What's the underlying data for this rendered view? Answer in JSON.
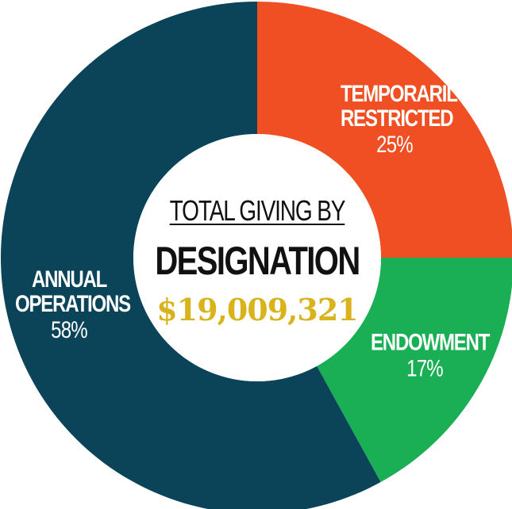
{
  "chart_data": {
    "type": "donut",
    "title": "TOTAL GIVING BY",
    "subtitle": "DESIGNATION",
    "total": "$19,009,321",
    "categories": [
      "TEMPORARILY RESTRICTED",
      "ENDOWMENT",
      "ANNUAL OPERATIONS"
    ],
    "values": [
      25,
      17,
      58
    ],
    "value_labels": [
      "25%",
      "17%",
      "58%"
    ],
    "colors": [
      "#f04e23",
      "#1aaf54",
      "#0b4459"
    ]
  }
}
